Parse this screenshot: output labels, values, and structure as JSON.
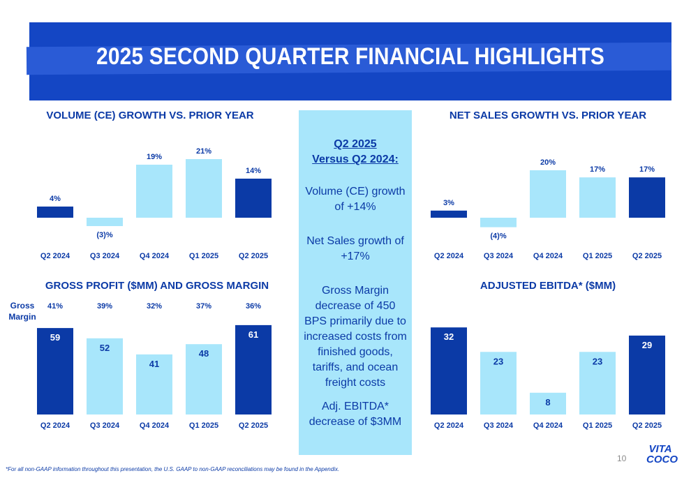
{
  "title": "2025 SECOND QUARTER FINANCIAL HIGHLIGHTS",
  "colors": {
    "dark_bar": "#0b3aa6",
    "light_bar": "#a8e6fb",
    "banner": "#1446c4",
    "text": "#0b3aa6"
  },
  "panel": {
    "heading_line1": "Q2 2025",
    "heading_line2": "Versus Q2 2024:",
    "item1": "Volume (CE) growth of +14%",
    "item2": "Net Sales growth of +17%",
    "item3": "Gross Margin decrease of 450 BPS primarily due to increased costs from finished goods, tariffs, and ocean freight costs",
    "item4": "Adj. EBITDA* decrease of $3MM"
  },
  "gross_margin_title": "Gross Margin",
  "footnote": "*For all non-GAAP information throughout this presentation, the U.S. GAAP to non-GAAP reconciliations may be found in the Appendix.",
  "page_number": "10",
  "logo_text": "VITA COCO",
  "chart_data": [
    {
      "type": "bar",
      "title": "VOLUME (CE) GROWTH VS. PRIOR YEAR",
      "categories": [
        "Q2 2024",
        "Q3 2024",
        "Q4 2024",
        "Q1 2025",
        "Q2 2025"
      ],
      "values": [
        4,
        -3,
        19,
        21,
        14
      ],
      "value_labels": [
        "4%",
        "(3)%",
        "19%",
        "21%",
        "14%"
      ],
      "bar_colors": [
        "dark",
        "light",
        "light",
        "light",
        "dark"
      ],
      "ylim": [
        -5,
        25
      ]
    },
    {
      "type": "bar",
      "title": "NET SALES GROWTH VS. PRIOR YEAR",
      "categories": [
        "Q2 2024",
        "Q3 2024",
        "Q4 2024",
        "Q1 2025",
        "Q2 2025"
      ],
      "values": [
        3,
        -4,
        20,
        17,
        17
      ],
      "value_labels": [
        "3%",
        "(4)%",
        "20%",
        "17%",
        "17%"
      ],
      "bar_colors": [
        "dark",
        "light",
        "light",
        "light",
        "dark"
      ],
      "ylim": [
        -5,
        25
      ]
    },
    {
      "type": "bar",
      "title": "GROSS PROFIT ($MM) AND GROSS MARGIN",
      "categories": [
        "Q2 2024",
        "Q3 2024",
        "Q4 2024",
        "Q1 2025",
        "Q2 2025"
      ],
      "values": [
        59,
        52,
        41,
        48,
        61
      ],
      "value_labels": [
        "59",
        "52",
        "41",
        "48",
        "61"
      ],
      "gross_margin": [
        "41%",
        "39%",
        "32%",
        "37%",
        "36%"
      ],
      "bar_colors": [
        "dark",
        "light",
        "light",
        "light",
        "dark"
      ],
      "ylim": [
        0,
        65
      ]
    },
    {
      "type": "bar",
      "title": "ADJUSTED EBITDA* ($MM)",
      "categories": [
        "Q2 2024",
        "Q3 2024",
        "Q4 2024",
        "Q1 2025",
        "Q2 2025"
      ],
      "values": [
        32,
        23,
        8,
        23,
        29
      ],
      "value_labels": [
        "32",
        "23",
        "8",
        "23",
        "29"
      ],
      "bar_colors": [
        "dark",
        "light",
        "light",
        "light",
        "dark"
      ],
      "ylim": [
        0,
        35
      ]
    }
  ]
}
